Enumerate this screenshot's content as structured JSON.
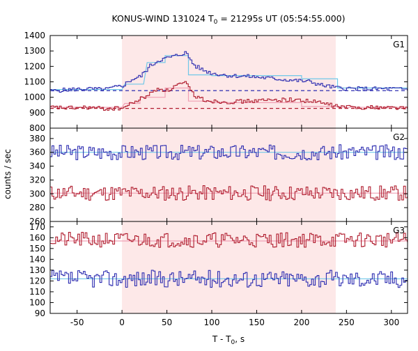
{
  "chart_data": {
    "type": "line",
    "title": "KONUS-WIND 131024 T",
    "title_sub": "0",
    "title_tail": " = 21295s UT (05:54:55.000)",
    "xlabel": "T - T",
    "xlabel_sub": "0",
    "xlabel_tail": ", s",
    "ylabel": "counts / sec",
    "xlim": [
      -80,
      318
    ],
    "xticks": [
      -50,
      0,
      50,
      100,
      150,
      200,
      250,
      300
    ],
    "highlight": {
      "x_start": 0,
      "x_end": 238,
      "color": "#fde8e8"
    },
    "colors": {
      "blue": "#2b2bb0",
      "red": "#b01c2e",
      "cyan": "#6fc8e8",
      "pink": "#f0a0b4"
    },
    "panels": [
      {
        "name": "G1",
        "ylim": [
          800,
          1400
        ],
        "yticks": [
          800,
          900,
          1000,
          1100,
          1200,
          1300,
          1400
        ],
        "series": [
          {
            "color": "blue",
            "points": [
              [
                -80,
                1040
              ],
              [
                -60,
                1050
              ],
              [
                -40,
                1055
              ],
              [
                -20,
                1050
              ],
              [
                0,
                1075
              ],
              [
                10,
                1115
              ],
              [
                20,
                1135
              ],
              [
                30,
                1200
              ],
              [
                40,
                1240
              ],
              [
                50,
                1255
              ],
              [
                60,
                1270
              ],
              [
                70,
                1290
              ],
              [
                80,
                1205
              ],
              [
                90,
                1175
              ],
              [
                100,
                1155
              ],
              [
                120,
                1140
              ],
              [
                140,
                1135
              ],
              [
                160,
                1125
              ],
              [
                180,
                1115
              ],
              [
                200,
                1105
              ],
              [
                210,
                1100
              ],
              [
                220,
                1080
              ],
              [
                230,
                1070
              ],
              [
                240,
                1060
              ],
              [
                260,
                1055
              ],
              [
                280,
                1055
              ],
              [
                300,
                1055
              ],
              [
                318,
                1050
              ]
            ]
          },
          {
            "color": "red",
            "points": [
              [
                -80,
                935
              ],
              [
                -60,
                930
              ],
              [
                -40,
                935
              ],
              [
                -20,
                925
              ],
              [
                0,
                930
              ],
              [
                10,
                960
              ],
              [
                20,
                990
              ],
              [
                30,
                1020
              ],
              [
                40,
                1060
              ],
              [
                50,
                1040
              ],
              [
                60,
                1080
              ],
              [
                70,
                1090
              ],
              [
                80,
                1010
              ],
              [
                90,
                985
              ],
              [
                100,
                975
              ],
              [
                120,
                970
              ],
              [
                140,
                975
              ],
              [
                160,
                980
              ],
              [
                180,
                985
              ],
              [
                200,
                980
              ],
              [
                220,
                965
              ],
              [
                240,
                940
              ],
              [
                260,
                935
              ],
              [
                280,
                935
              ],
              [
                300,
                935
              ],
              [
                318,
                930
              ]
            ]
          }
        ],
        "fits": [
          {
            "color": "cyan",
            "points": [
              [
                -80,
                1050
              ],
              [
                0,
                1050
              ],
              [
                3,
                1085
              ],
              [
                24,
                1085
              ],
              [
                28,
                1225
              ],
              [
                48,
                1225
              ],
              [
                48,
                1270
              ],
              [
                74,
                1270
              ],
              [
                74,
                1145
              ],
              [
                100,
                1145
              ],
              [
                100,
                1140
              ],
              [
                200,
                1140
              ],
              [
                200,
                1120
              ],
              [
                240,
                1120
              ],
              [
                240,
                1060
              ],
              [
                318,
                1060
              ]
            ]
          },
          {
            "color": "pink",
            "points": [
              [
                -80,
                935
              ],
              [
                0,
                935
              ],
              [
                3,
                960
              ],
              [
                20,
                960
              ],
              [
                20,
                1000
              ],
              [
                48,
                1000
              ],
              [
                48,
                1060
              ],
              [
                74,
                1060
              ],
              [
                74,
                975
              ],
              [
                100,
                975
              ],
              [
                100,
                965
              ],
              [
                200,
                965
              ],
              [
                200,
                940
              ],
              [
                240,
                940
              ],
              [
                240,
                935
              ],
              [
                318,
                935
              ]
            ]
          }
        ],
        "dashed": [
          {
            "color": "blue",
            "y": 1043
          },
          {
            "color": "red",
            "y": 928
          }
        ]
      },
      {
        "name": "G2",
        "ylim": [
          260,
          395
        ],
        "yticks": [
          260,
          280,
          300,
          320,
          340,
          360,
          380
        ],
        "series": [
          {
            "color": "blue",
            "mean": 360,
            "amp": 11,
            "seed": 3
          },
          {
            "color": "red",
            "mean": 301,
            "amp": 11,
            "seed": 11
          }
        ],
        "fits": [
          {
            "color": "cyan",
            "points": [
              [
                -80,
                360
              ],
              [
                318,
                360
              ]
            ]
          },
          {
            "color": "pink",
            "points": [
              [
                -80,
                301
              ],
              [
                318,
                301
              ]
            ]
          }
        ]
      },
      {
        "name": "G3",
        "ylim": [
          90,
          175
        ],
        "yticks": [
          90,
          100,
          110,
          120,
          130,
          140,
          150,
          160,
          170
        ],
        "series": [
          {
            "color": "red",
            "mean": 158,
            "amp": 7,
            "seed": 21
          },
          {
            "color": "blue",
            "mean": 122,
            "amp": 8,
            "seed": 37
          }
        ],
        "fits": [
          {
            "color": "pink",
            "points": [
              [
                -80,
                157
              ],
              [
                318,
                157
              ]
            ]
          },
          {
            "color": "cyan",
            "points": [
              [
                -80,
                122
              ],
              [
                318,
                122
              ]
            ]
          }
        ]
      }
    ]
  }
}
